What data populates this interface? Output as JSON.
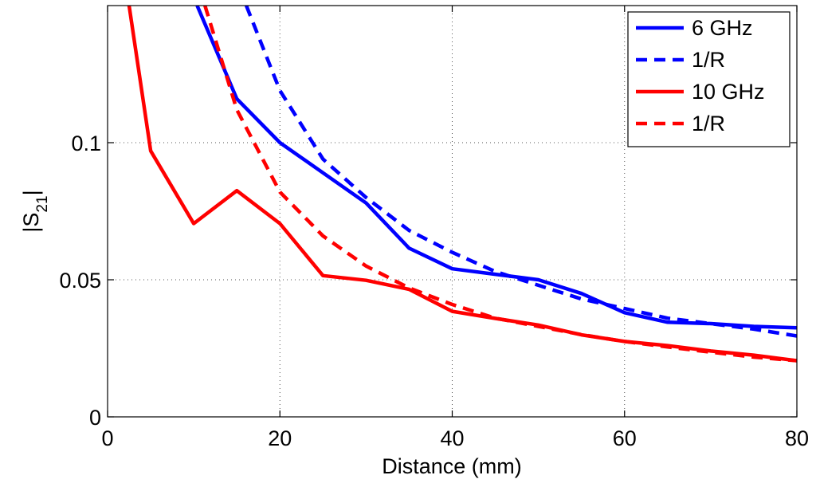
{
  "chart_data": {
    "type": "line",
    "title": "",
    "xlabel": "Distance (mm)",
    "ylabel": "|S21|",
    "ylabel_main": "|S",
    "ylabel_sub": "21",
    "ylabel_end": "|",
    "xlim": [
      0,
      80
    ],
    "ylim": [
      0,
      0.15
    ],
    "grid": "dotted",
    "legend_position": "top-right",
    "x_ticks": [
      0,
      20,
      40,
      60,
      80
    ],
    "x_tick_labels": [
      "0",
      "20",
      "40",
      "60",
      "80"
    ],
    "y_ticks": [
      0,
      0.05,
      0.1
    ],
    "y_tick_labels": [
      "0",
      "0.05",
      "0.1"
    ],
    "series": [
      {
        "name": "6 GHz",
        "color": "#0000ff",
        "style": "solid",
        "x": [
          10.4,
          15,
          20,
          25,
          30,
          35,
          40,
          45,
          50,
          55,
          60,
          65,
          70,
          75,
          80
        ],
        "y": [
          0.15,
          0.116,
          0.1,
          0.089,
          0.078,
          0.0615,
          0.054,
          0.052,
          0.05,
          0.045,
          0.038,
          0.0345,
          0.034,
          0.033,
          0.0325
        ]
      },
      {
        "name": "1/R",
        "color": "#0000ff",
        "style": "dashed",
        "x": [
          16.1,
          20,
          25,
          30,
          35,
          40,
          45,
          50,
          55,
          60,
          65,
          70,
          75,
          80
        ],
        "y": [
          0.15,
          0.119,
          0.094,
          0.08,
          0.068,
          0.06,
          0.053,
          0.048,
          0.043,
          0.0395,
          0.036,
          0.034,
          0.032,
          0.0295
        ]
      },
      {
        "name": "10 GHz",
        "color": "#ff0000",
        "style": "solid",
        "x": [
          2.5,
          5,
          10,
          15,
          20,
          25,
          30,
          35,
          40,
          45,
          50,
          55,
          60,
          65,
          70,
          75,
          80
        ],
        "y": [
          0.15,
          0.097,
          0.0705,
          0.0825,
          0.0705,
          0.0515,
          0.0498,
          0.0465,
          0.0385,
          0.0359,
          0.0335,
          0.0299,
          0.0275,
          0.026,
          0.024,
          0.0225,
          0.0205
        ]
      },
      {
        "name": "1/R",
        "color": "#ff0000",
        "style": "dashed",
        "x": [
          11.3,
          15,
          20,
          25,
          30,
          35,
          40,
          45,
          50,
          55,
          60,
          65,
          70,
          75,
          80
        ],
        "y": [
          0.15,
          0.112,
          0.082,
          0.066,
          0.055,
          0.047,
          0.041,
          0.036,
          0.033,
          0.03,
          0.0275,
          0.0255,
          0.0236,
          0.0218,
          0.0205
        ]
      }
    ]
  }
}
